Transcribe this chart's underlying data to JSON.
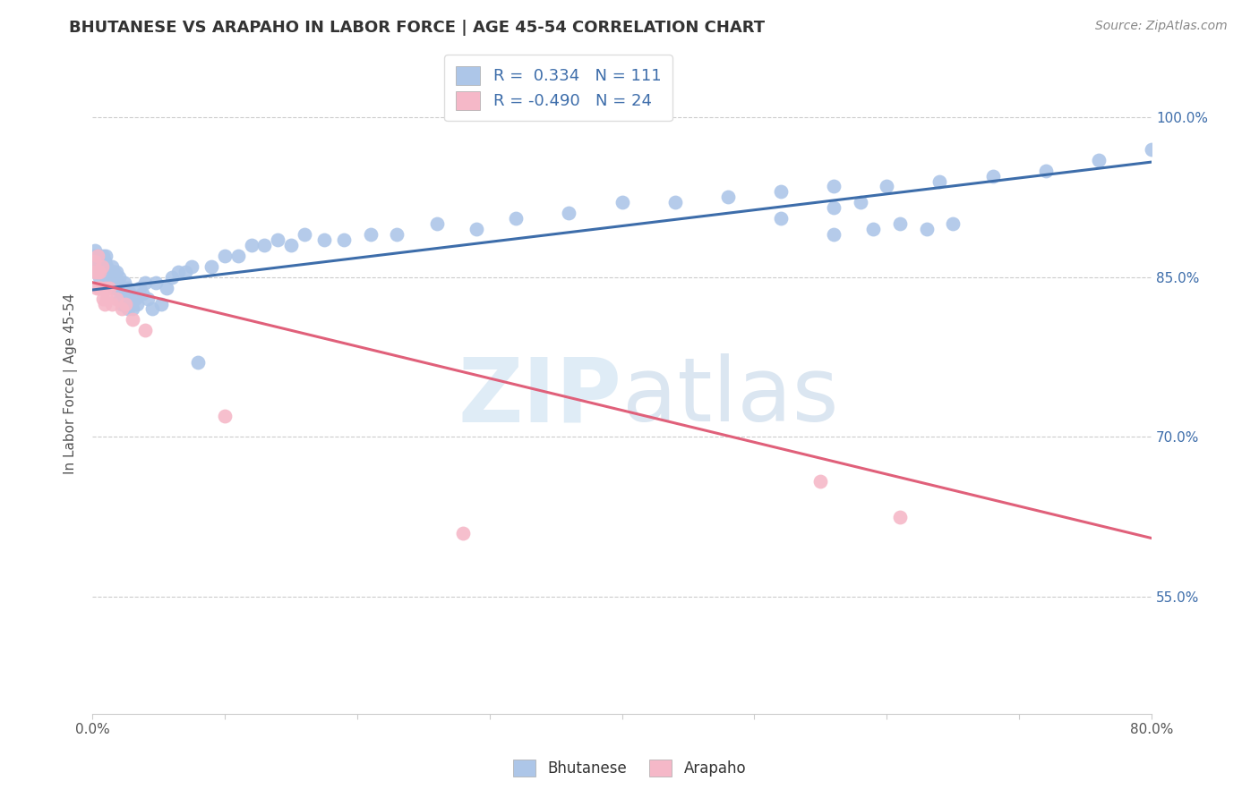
{
  "title": "BHUTANESE VS ARAPAHO IN LABOR FORCE | AGE 45-54 CORRELATION CHART",
  "source": "Source: ZipAtlas.com",
  "ylabel": "In Labor Force | Age 45-54",
  "ytick_labels": [
    "55.0%",
    "70.0%",
    "85.0%",
    "100.0%"
  ],
  "ytick_values": [
    0.55,
    0.7,
    0.85,
    1.0
  ],
  "xlim": [
    0.0,
    0.8
  ],
  "ylim": [
    0.44,
    1.06
  ],
  "watermark": "ZIPatlas",
  "legend_bhutanese_R": "0.334",
  "legend_bhutanese_N": "111",
  "legend_arapaho_R": "-0.490",
  "legend_arapaho_N": "24",
  "blue_color": "#adc6e8",
  "pink_color": "#f5b8c8",
  "blue_line_color": "#3d6daa",
  "pink_line_color": "#e0607a",
  "legend_text_color": "#3d6daa",
  "blue_line_x0": 0.0,
  "blue_line_y0": 0.838,
  "blue_line_x1": 0.8,
  "blue_line_y1": 0.958,
  "pink_line_x0": 0.0,
  "pink_line_y0": 0.845,
  "pink_line_x1": 0.8,
  "pink_line_y1": 0.605,
  "bhutanese_x": [
    0.001,
    0.002,
    0.002,
    0.003,
    0.003,
    0.003,
    0.004,
    0.004,
    0.004,
    0.005,
    0.005,
    0.005,
    0.005,
    0.006,
    0.006,
    0.006,
    0.007,
    0.007,
    0.007,
    0.008,
    0.008,
    0.008,
    0.009,
    0.009,
    0.009,
    0.01,
    0.01,
    0.01,
    0.01,
    0.011,
    0.011,
    0.011,
    0.012,
    0.012,
    0.012,
    0.013,
    0.013,
    0.013,
    0.014,
    0.014,
    0.015,
    0.015,
    0.016,
    0.016,
    0.017,
    0.017,
    0.018,
    0.018,
    0.019,
    0.019,
    0.02,
    0.02,
    0.021,
    0.022,
    0.023,
    0.024,
    0.025,
    0.026,
    0.027,
    0.028,
    0.03,
    0.032,
    0.034,
    0.036,
    0.038,
    0.04,
    0.042,
    0.045,
    0.048,
    0.052,
    0.056,
    0.06,
    0.065,
    0.07,
    0.075,
    0.08,
    0.09,
    0.1,
    0.11,
    0.12,
    0.13,
    0.14,
    0.15,
    0.16,
    0.175,
    0.19,
    0.21,
    0.23,
    0.26,
    0.29,
    0.32,
    0.36,
    0.4,
    0.44,
    0.48,
    0.52,
    0.56,
    0.6,
    0.64,
    0.68,
    0.72,
    0.76,
    0.8,
    0.52,
    0.56,
    0.58,
    0.56,
    0.59,
    0.61,
    0.63,
    0.65
  ],
  "bhutanese_y": [
    0.87,
    0.875,
    0.86,
    0.865,
    0.855,
    0.86,
    0.87,
    0.86,
    0.855,
    0.865,
    0.855,
    0.85,
    0.86,
    0.855,
    0.865,
    0.86,
    0.86,
    0.855,
    0.865,
    0.87,
    0.855,
    0.86,
    0.855,
    0.86,
    0.865,
    0.855,
    0.85,
    0.86,
    0.87,
    0.85,
    0.855,
    0.86,
    0.845,
    0.85,
    0.855,
    0.845,
    0.85,
    0.855,
    0.85,
    0.845,
    0.855,
    0.86,
    0.845,
    0.855,
    0.84,
    0.85,
    0.845,
    0.855,
    0.84,
    0.845,
    0.84,
    0.85,
    0.83,
    0.825,
    0.835,
    0.845,
    0.83,
    0.84,
    0.82,
    0.835,
    0.82,
    0.83,
    0.825,
    0.84,
    0.835,
    0.845,
    0.83,
    0.82,
    0.845,
    0.825,
    0.84,
    0.85,
    0.855,
    0.855,
    0.86,
    0.77,
    0.86,
    0.87,
    0.87,
    0.88,
    0.88,
    0.885,
    0.88,
    0.89,
    0.885,
    0.885,
    0.89,
    0.89,
    0.9,
    0.895,
    0.905,
    0.91,
    0.92,
    0.92,
    0.925,
    0.93,
    0.935,
    0.935,
    0.94,
    0.945,
    0.95,
    0.96,
    0.97,
    0.905,
    0.915,
    0.92,
    0.89,
    0.895,
    0.9,
    0.895,
    0.9
  ],
  "arapaho_x": [
    0.001,
    0.002,
    0.003,
    0.004,
    0.004,
    0.005,
    0.005,
    0.006,
    0.007,
    0.008,
    0.009,
    0.01,
    0.011,
    0.013,
    0.015,
    0.018,
    0.022,
    0.025,
    0.03,
    0.04,
    0.1,
    0.28,
    0.55,
    0.61
  ],
  "arapaho_y": [
    0.865,
    0.855,
    0.84,
    0.87,
    0.855,
    0.84,
    0.855,
    0.84,
    0.86,
    0.83,
    0.825,
    0.84,
    0.83,
    0.84,
    0.825,
    0.83,
    0.82,
    0.825,
    0.81,
    0.8,
    0.72,
    0.61,
    0.658,
    0.625
  ]
}
